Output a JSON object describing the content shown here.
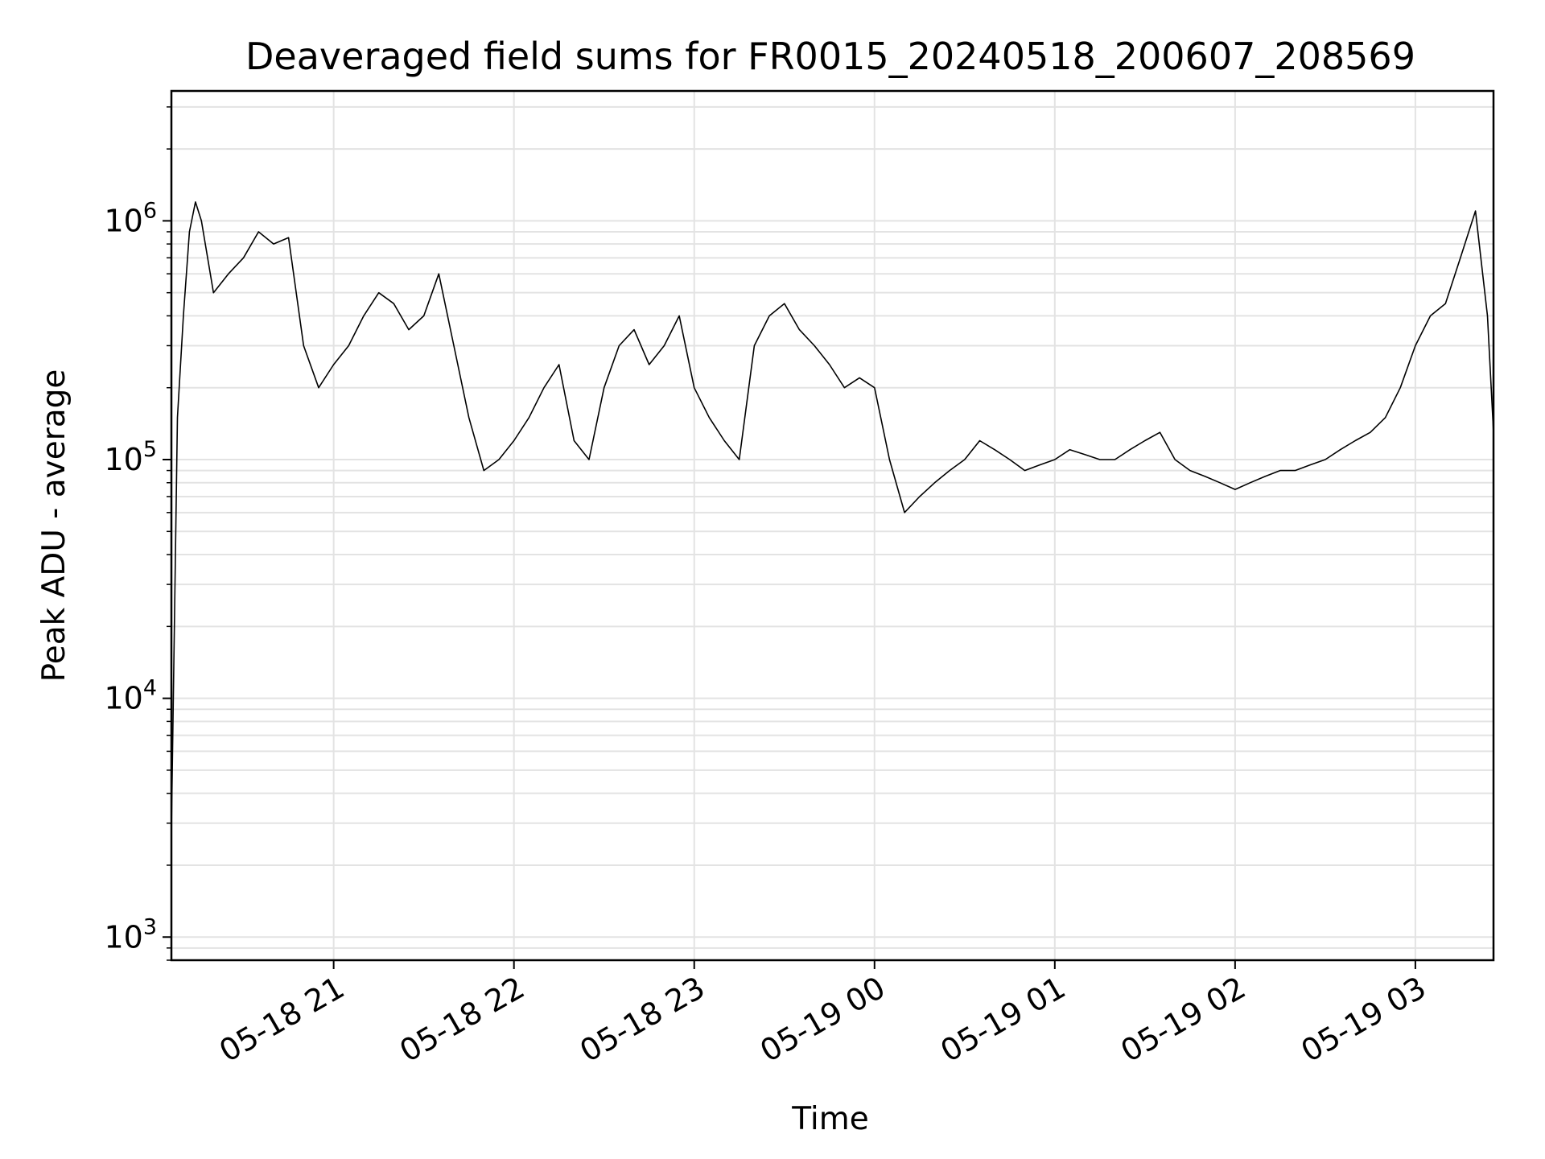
{
  "chart_data": {
    "type": "line",
    "title": "Deaveraged field sums for FR0015_20240518_200607_208569",
    "xlabel": "Time",
    "ylabel": "Peak ADU - average",
    "yscale": "log",
    "ylim": [
      800,
      3500000
    ],
    "xlim": [
      "2024-05-18 20:06",
      "2024-05-19 03:26"
    ],
    "grid": true,
    "x_ticks": [
      "05-18 21",
      "05-18 22",
      "05-18 23",
      "05-19 00",
      "05-19 01",
      "05-19 02",
      "05-19 03"
    ],
    "y_ticks": [
      {
        "base": "10",
        "exp": "3",
        "value": 1000
      },
      {
        "base": "10",
        "exp": "4",
        "value": 10000
      },
      {
        "base": "10",
        "exp": "5",
        "value": 100000
      },
      {
        "base": "10",
        "exp": "6",
        "value": 1000000
      }
    ],
    "series": [
      {
        "color": "#000000",
        "x": [
          "2024-05-18 20:06",
          "2024-05-18 20:08",
          "2024-05-18 20:10",
          "2024-05-18 20:12",
          "2024-05-18 20:14",
          "2024-05-18 20:16",
          "2024-05-18 20:20",
          "2024-05-18 20:25",
          "2024-05-18 20:30",
          "2024-05-18 20:35",
          "2024-05-18 20:40",
          "2024-05-18 20:45",
          "2024-05-18 20:50",
          "2024-05-18 20:55",
          "2024-05-18 21:00",
          "2024-05-18 21:05",
          "2024-05-18 21:10",
          "2024-05-18 21:15",
          "2024-05-18 21:20",
          "2024-05-18 21:25",
          "2024-05-18 21:30",
          "2024-05-18 21:35",
          "2024-05-18 21:40",
          "2024-05-18 21:45",
          "2024-05-18 21:50",
          "2024-05-18 21:55",
          "2024-05-18 22:00",
          "2024-05-18 22:05",
          "2024-05-18 22:10",
          "2024-05-18 22:15",
          "2024-05-18 22:20",
          "2024-05-18 22:25",
          "2024-05-18 22:30",
          "2024-05-18 22:35",
          "2024-05-18 22:40",
          "2024-05-18 22:45",
          "2024-05-18 22:50",
          "2024-05-18 22:55",
          "2024-05-18 23:00",
          "2024-05-18 23:05",
          "2024-05-18 23:10",
          "2024-05-18 23:15",
          "2024-05-18 23:20",
          "2024-05-18 23:25",
          "2024-05-18 23:30",
          "2024-05-18 23:35",
          "2024-05-18 23:40",
          "2024-05-18 23:45",
          "2024-05-18 23:50",
          "2024-05-18 23:55",
          "2024-05-19 00:00",
          "2024-05-19 00:05",
          "2024-05-19 00:10",
          "2024-05-19 00:15",
          "2024-05-19 00:20",
          "2024-05-19 00:25",
          "2024-05-19 00:30",
          "2024-05-19 00:35",
          "2024-05-19 00:40",
          "2024-05-19 00:45",
          "2024-05-19 00:50",
          "2024-05-19 00:55",
          "2024-05-19 01:00",
          "2024-05-19 01:05",
          "2024-05-19 01:10",
          "2024-05-19 01:15",
          "2024-05-19 01:20",
          "2024-05-19 01:25",
          "2024-05-19 01:30",
          "2024-05-19 01:35",
          "2024-05-19 01:40",
          "2024-05-19 01:45",
          "2024-05-19 01:50",
          "2024-05-19 01:55",
          "2024-05-19 02:00",
          "2024-05-19 02:05",
          "2024-05-19 02:10",
          "2024-05-19 02:15",
          "2024-05-19 02:20",
          "2024-05-19 02:25",
          "2024-05-19 02:30",
          "2024-05-19 02:35",
          "2024-05-19 02:40",
          "2024-05-19 02:45",
          "2024-05-19 02:50",
          "2024-05-19 02:55",
          "2024-05-19 03:00",
          "2024-05-19 03:05",
          "2024-05-19 03:10",
          "2024-05-19 03:15",
          "2024-05-19 03:20",
          "2024-05-19 03:24",
          "2024-05-19 03:26"
        ],
        "y": [
          2800,
          150000,
          400000,
          900000,
          1200000,
          1000000,
          500000,
          600000,
          700000,
          900000,
          800000,
          850000,
          300000,
          200000,
          250000,
          300000,
          400000,
          500000,
          450000,
          350000,
          400000,
          600000,
          300000,
          150000,
          90000,
          100000,
          120000,
          150000,
          200000,
          250000,
          120000,
          100000,
          200000,
          300000,
          350000,
          250000,
          300000,
          400000,
          200000,
          150000,
          120000,
          100000,
          300000,
          400000,
          450000,
          350000,
          300000,
          250000,
          200000,
          220000,
          200000,
          100000,
          60000,
          70000,
          80000,
          90000,
          100000,
          120000,
          110000,
          100000,
          90000,
          95000,
          100000,
          110000,
          105000,
          100000,
          100000,
          110000,
          120000,
          130000,
          100000,
          90000,
          85000,
          80000,
          75000,
          80000,
          85000,
          90000,
          90000,
          95000,
          100000,
          110000,
          120000,
          130000,
          150000,
          200000,
          300000,
          400000,
          450000,
          700000,
          1100000,
          400000,
          130000
        ]
      }
    ]
  }
}
